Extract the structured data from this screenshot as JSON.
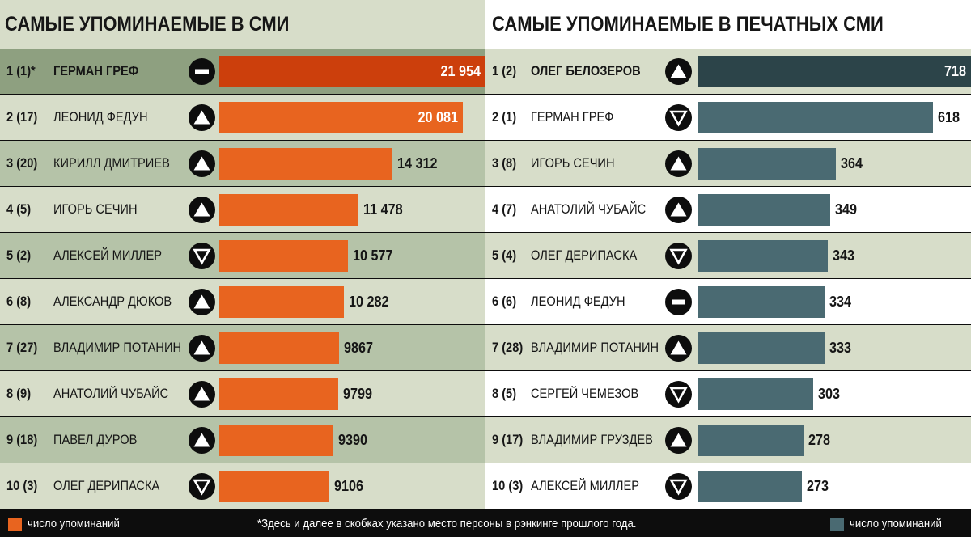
{
  "colors": {
    "left_header_bg": "#d7ddc9",
    "left_row_dark": "#b5c3a8",
    "left_row_light": "#d7ddc9",
    "left_row_top": "#8ea080",
    "left_bar": "#e8641f",
    "left_bar_top": "#cc3f0c",
    "right_header_bg": "#ffffff",
    "right_row_dark": "#d7ddc9",
    "right_row_light": "#ffffff",
    "right_bar": "#4a6a72",
    "right_bar_top": "#2c4449",
    "footer_bg": "#0d0d0d"
  },
  "footer": {
    "legend_left": "число упоминаний",
    "legend_right": "число упоминаний",
    "footnote": "*Здесь и далее в скобках указано место персоны в рэнкинге прошлого года."
  },
  "chart_data": [
    {
      "type": "bar",
      "orientation": "horizontal",
      "title": "САМЫЕ УПОМИНАЕМЫЕ В СМИ",
      "legend": "число упоминаний",
      "xlim": [
        0,
        21954
      ],
      "rows": [
        {
          "rank": "1 (1)*",
          "name": "ГЕРМАН ГРЕФ",
          "value": 21954,
          "label": "21 954",
          "trend": "same"
        },
        {
          "rank": "2 (17)",
          "name": "ЛЕОНИД ФЕДУН",
          "value": 20081,
          "label": "20 081",
          "trend": "up"
        },
        {
          "rank": "3 (20)",
          "name": "КИРИЛЛ ДМИТРИЕВ",
          "value": 14312,
          "label": "14 312",
          "trend": "up"
        },
        {
          "rank": "4 (5)",
          "name": "ИГОРЬ СЕЧИН",
          "value": 11478,
          "label": "11 478",
          "trend": "up"
        },
        {
          "rank": "5 (2)",
          "name": "АЛЕКСЕЙ МИЛЛЕР",
          "value": 10577,
          "label": "10 577",
          "trend": "down"
        },
        {
          "rank": "6 (8)",
          "name": "АЛЕКСАНДР ДЮКОВ",
          "value": 10282,
          "label": "10 282",
          "trend": "up"
        },
        {
          "rank": "7 (27)",
          "name": "ВЛАДИМИР ПОТАНИН",
          "value": 9867,
          "label": "9867",
          "trend": "up"
        },
        {
          "rank": "8 (9)",
          "name": "АНАТОЛИЙ ЧУБАЙС",
          "value": 9799,
          "label": "9799",
          "trend": "up"
        },
        {
          "rank": "9 (18)",
          "name": "ПАВЕЛ ДУРОВ",
          "value": 9390,
          "label": "9390",
          "trend": "up"
        },
        {
          "rank": "10 (3)",
          "name": "ОЛЕГ ДЕРИПАСКА",
          "value": 9106,
          "label": "9106",
          "trend": "down"
        }
      ]
    },
    {
      "type": "bar",
      "orientation": "horizontal",
      "title": "САМЫЕ УПОМИНАЕМЫЕ В ПЕЧАТНЫХ СМИ",
      "legend": "число упоминаний",
      "xlim": [
        0,
        718
      ],
      "rows": [
        {
          "rank": "1 (2)",
          "name": "ОЛЕГ БЕЛОЗЕРОВ",
          "value": 718,
          "label": "718",
          "trend": "up"
        },
        {
          "rank": "2 (1)",
          "name": "ГЕРМАН ГРЕФ",
          "value": 618,
          "label": "618",
          "trend": "down"
        },
        {
          "rank": "3 (8)",
          "name": "ИГОРЬ СЕЧИН",
          "value": 364,
          "label": "364",
          "trend": "up"
        },
        {
          "rank": "4 (7)",
          "name": "АНАТОЛИЙ ЧУБАЙС",
          "value": 349,
          "label": "349",
          "trend": "up"
        },
        {
          "rank": "5 (4)",
          "name": "ОЛЕГ ДЕРИПАСКА",
          "value": 343,
          "label": "343",
          "trend": "down"
        },
        {
          "rank": "6 (6)",
          "name": "ЛЕОНИД ФЕДУН",
          "value": 334,
          "label": "334",
          "trend": "same"
        },
        {
          "rank": "7 (28)",
          "name": "ВЛАДИМИР ПОТАНИН",
          "value": 333,
          "label": "333",
          "trend": "up"
        },
        {
          "rank": "8 (5)",
          "name": "СЕРГЕЙ ЧЕМЕЗОВ",
          "value": 303,
          "label": "303",
          "trend": "down"
        },
        {
          "rank": "9 (17)",
          "name": "ВЛАДИМИР ГРУЗДЕВ",
          "value": 278,
          "label": "278",
          "trend": "up"
        },
        {
          "rank": "10 (3)",
          "name": "АЛЕКСЕЙ МИЛЛЕР",
          "value": 273,
          "label": "273",
          "trend": "down"
        }
      ]
    }
  ]
}
